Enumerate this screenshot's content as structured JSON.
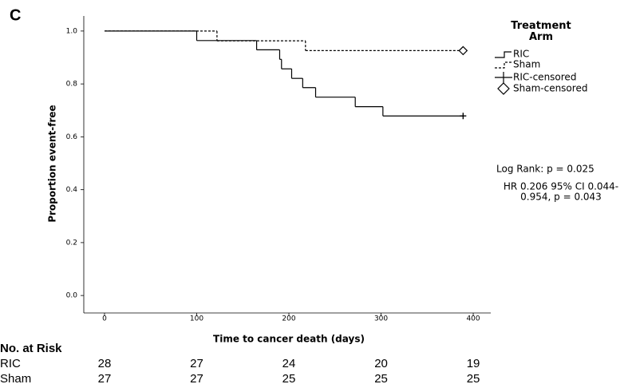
{
  "chart_data": {
    "type": "kaplan-meier",
    "panel_label": "C",
    "xlabel": "Time to cancer death (days)",
    "ylabel": "Proportion event-free",
    "xlim": [
      -22.5,
      419
    ],
    "ylim": [
      -0.066,
      1.057
    ],
    "xticks": [
      0,
      100,
      200,
      300,
      400
    ],
    "yticks": [
      {
        "value": 0,
        "label": "0.0"
      },
      0.2,
      0.4,
      0.6,
      0.8,
      {
        "value": 1,
        "label": "1.0"
      }
    ],
    "legend_title": "Treatment Arm",
    "series": [
      {
        "name": "RIC",
        "color": "#000000",
        "dashed": false,
        "x": [
          0,
          100,
          165,
          190,
          192,
          203,
          215,
          229,
          272,
          302,
          389
        ],
        "values": [
          1,
          0.964,
          0.929,
          0.893,
          0.857,
          0.821,
          0.786,
          0.75,
          0.714,
          0.679,
          0.679
        ]
      },
      {
        "name": "Sham",
        "color": "#000000",
        "dashed": true,
        "x": [
          0,
          122,
          218,
          389
        ],
        "values": [
          1,
          0.963,
          0.926,
          0.926
        ]
      },
      {
        "name": "RIC-censored",
        "color": "#000000",
        "marker": "plus",
        "x": [
          389
        ],
        "values": [
          0.679
        ]
      },
      {
        "name": "Sham-censored",
        "color": "#000000",
        "marker": "diamond",
        "x": [
          389
        ],
        "values": [
          0.926
        ]
      }
    ],
    "annotations": [
      "Log Rank: p = 0.025",
      "HR 0.206 95% CI 0.044-",
      "0.954, p = 0.043"
    ],
    "risk_table": {
      "title": "No. at Risk",
      "rows": [
        {
          "name": "RIC",
          "values": [
            28,
            27,
            24,
            20,
            19
          ]
        },
        {
          "name": "Sham",
          "values": [
            27,
            27,
            25,
            25,
            25
          ]
        }
      ]
    }
  }
}
